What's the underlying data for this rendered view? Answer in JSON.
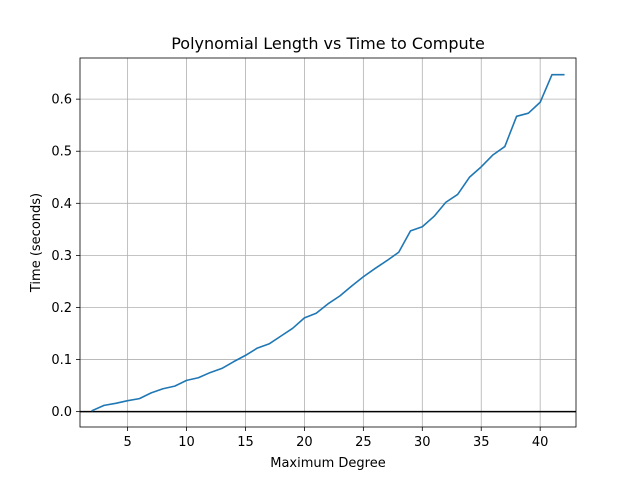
{
  "chart_data": {
    "type": "line",
    "title": "Polynomial Length vs Time to Compute",
    "xlabel": "Maximum Degree",
    "ylabel": "Time (seconds)",
    "xlim": [
      0.96,
      43.04
    ],
    "ylim": [
      -0.0295,
      0.679
    ],
    "x_ticks": [
      5,
      10,
      15,
      20,
      25,
      30,
      35,
      40
    ],
    "y_ticks": [
      0.0,
      0.1,
      0.2,
      0.3,
      0.4,
      0.5,
      0.6
    ],
    "y_tick_labels": [
      "0.0",
      "0.1",
      "0.2",
      "0.3",
      "0.4",
      "0.5",
      "0.6"
    ],
    "grid": true,
    "horizontal_line": {
      "y": 0.0,
      "color": "#000000"
    },
    "series": [
      {
        "color": "#1f77b4",
        "x": [
          2,
          3,
          4,
          5,
          6,
          7,
          8,
          9,
          10,
          11,
          12,
          13,
          14,
          15,
          16,
          17,
          18,
          19,
          20,
          21,
          22,
          23,
          24,
          25,
          26,
          27,
          28,
          29,
          30,
          31,
          32,
          33,
          34,
          35,
          36,
          37,
          38,
          39,
          40,
          41,
          42
        ],
        "values": [
          0.002,
          0.012,
          0.016,
          0.021,
          0.025,
          0.036,
          0.044,
          0.049,
          0.06,
          0.065,
          0.075,
          0.083,
          0.096,
          0.108,
          0.122,
          0.13,
          0.145,
          0.16,
          0.18,
          0.189,
          0.207,
          0.222,
          0.241,
          0.259,
          0.275,
          0.29,
          0.306,
          0.347,
          0.355,
          0.375,
          0.402,
          0.417,
          0.45,
          0.47,
          0.493,
          0.509,
          0.567,
          0.573,
          0.594,
          0.647,
          0.647
        ]
      }
    ]
  }
}
